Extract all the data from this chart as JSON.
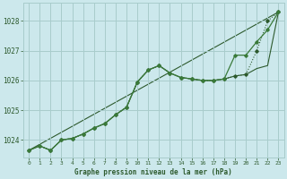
{
  "background_color": "#cce8ec",
  "grid_color": "#a8cccc",
  "line_color_dark": "#2d5a2d",
  "line_color_medium": "#3a7a3a",
  "title": "Graphe pression niveau de la mer (hPa)",
  "xlim": [
    -0.5,
    23.5
  ],
  "ylim": [
    1023.4,
    1028.6
  ],
  "yticks": [
    1024,
    1025,
    1026,
    1027,
    1028
  ],
  "xticks": [
    0,
    1,
    2,
    3,
    4,
    5,
    6,
    7,
    8,
    9,
    10,
    11,
    12,
    13,
    14,
    15,
    16,
    17,
    18,
    19,
    20,
    21,
    22,
    23
  ],
  "series": [
    {
      "x": [
        0,
        1,
        2,
        3,
        4,
        5,
        6,
        7,
        8,
        9,
        10,
        11,
        12,
        13,
        14,
        15,
        16,
        17,
        18,
        19,
        20,
        21,
        22,
        23
      ],
      "y": [
        1023.65,
        1023.8,
        1023.65,
        1024.0,
        1024.05,
        1024.2,
        1024.4,
        1024.55,
        1024.85,
        1025.1,
        1025.95,
        1026.35,
        1026.5,
        1026.25,
        1026.1,
        1026.05,
        1026.0,
        1026.0,
        1026.05,
        1026.15,
        1026.2,
        1027.0,
        1028.0,
        1028.3
      ],
      "style": "dotted_marker"
    },
    {
      "x": [
        0,
        1,
        2,
        3,
        4,
        5,
        6,
        7,
        8,
        9,
        10,
        11,
        12,
        13,
        14,
        15,
        16,
        17,
        18,
        19,
        20,
        21,
        22,
        23
      ],
      "y": [
        1023.65,
        1023.8,
        1023.65,
        1024.0,
        1024.05,
        1024.2,
        1024.4,
        1024.55,
        1024.85,
        1025.1,
        1025.95,
        1026.35,
        1026.5,
        1026.25,
        1026.1,
        1026.05,
        1026.0,
        1026.0,
        1026.05,
        1026.15,
        1026.2,
        1026.4,
        1026.5,
        1028.3
      ],
      "style": "solid_thin"
    },
    {
      "x": [
        0,
        1,
        2,
        3,
        4,
        5,
        6,
        7,
        8,
        9,
        10,
        11,
        12,
        13,
        14,
        15,
        16,
        17,
        18,
        19,
        20,
        21,
        22,
        23
      ],
      "y": [
        1023.65,
        1023.8,
        1023.65,
        1024.0,
        1024.05,
        1024.2,
        1024.4,
        1024.55,
        1024.85,
        1025.1,
        1025.95,
        1026.35,
        1026.5,
        1026.25,
        1026.1,
        1026.05,
        1026.0,
        1026.0,
        1026.05,
        1026.85,
        1026.85,
        1027.3,
        1027.7,
        1028.3
      ],
      "style": "solid_marker"
    },
    {
      "x": [
        0,
        23
      ],
      "y": [
        1023.65,
        1028.3
      ],
      "style": "straight_line"
    }
  ]
}
